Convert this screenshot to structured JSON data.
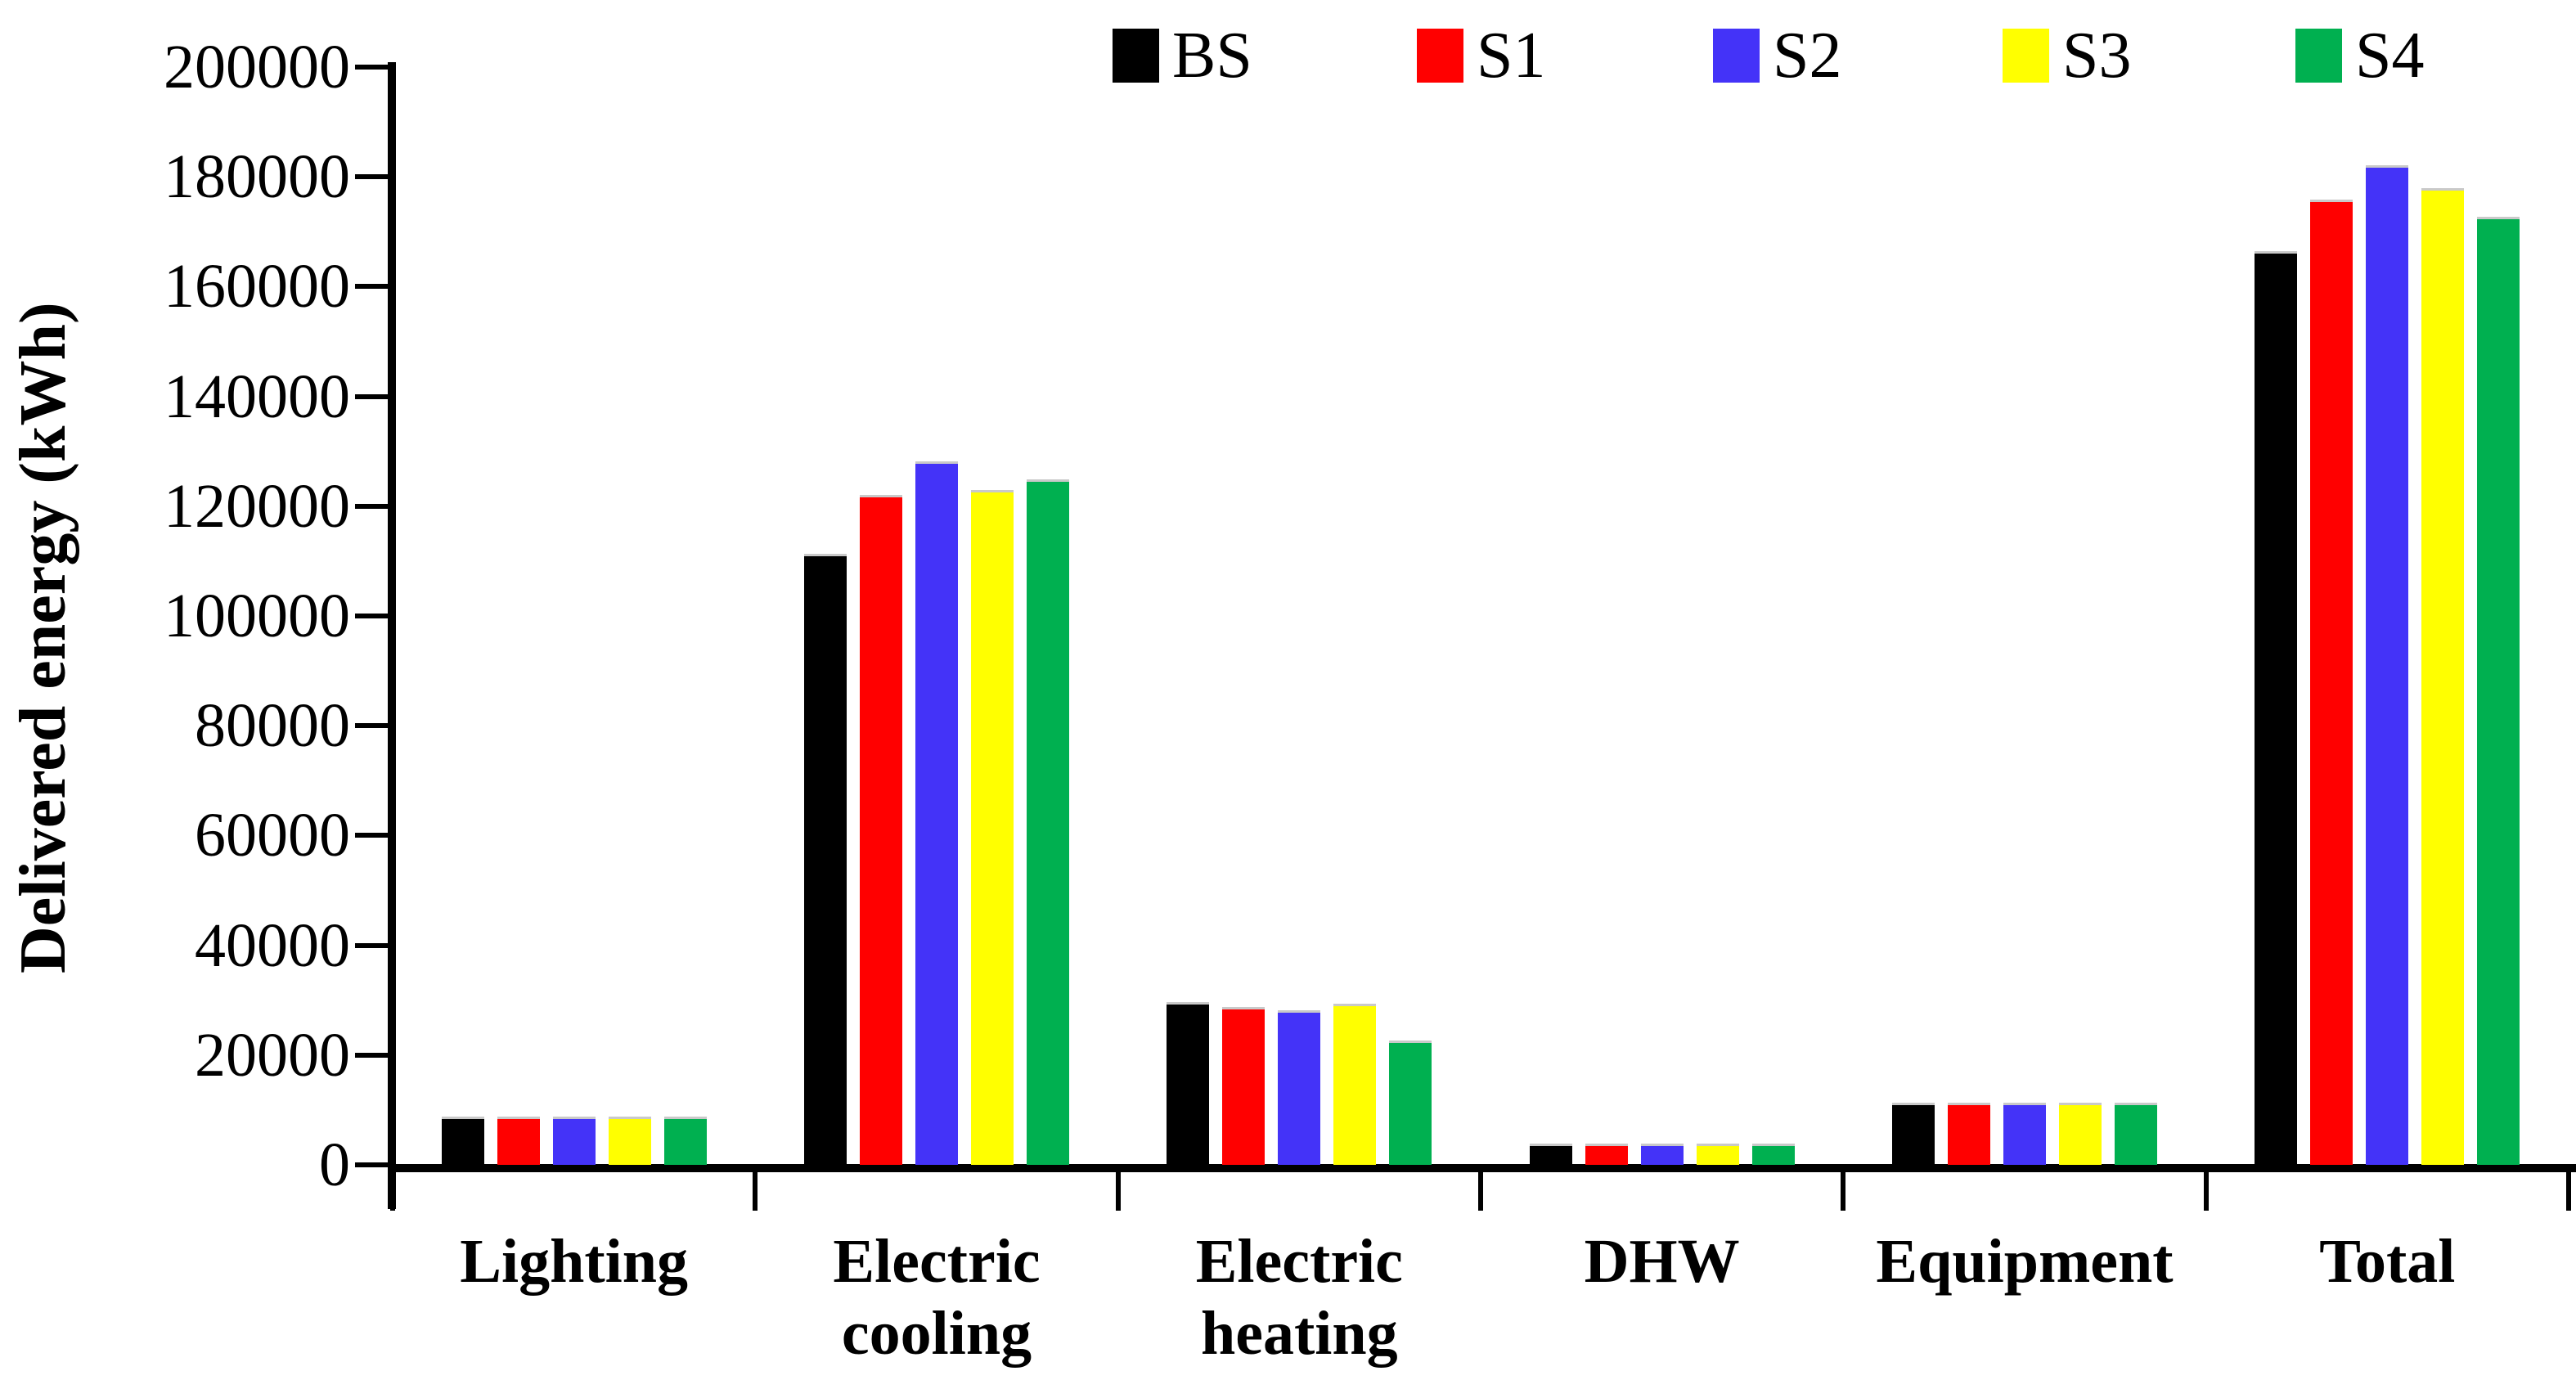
{
  "chart_data": {
    "type": "bar",
    "title": "",
    "xlabel": "",
    "ylabel": "Delivered energy (kWh)",
    "categories": [
      "Lighting",
      "Electric cooling",
      "Electric heating",
      "DHW",
      "Equipment",
      "Total"
    ],
    "category_lines": [
      [
        "Lighting"
      ],
      [
        "Electric",
        "cooling"
      ],
      [
        "Electric",
        "heating"
      ],
      [
        "DHW"
      ],
      [
        "Equipment"
      ],
      [
        "Total"
      ]
    ],
    "series": [
      {
        "name": "BS",
        "color": "#000000",
        "values": [
          8800,
          111300,
          29700,
          3900,
          11300,
          166400
        ]
      },
      {
        "name": "S1",
        "color": "#FF0000",
        "values": [
          8800,
          122100,
          28700,
          3900,
          11300,
          175900
        ]
      },
      {
        "name": "S2",
        "color": "#4433F8",
        "values": [
          8800,
          128100,
          28100,
          3900,
          11300,
          182100
        ]
      },
      {
        "name": "S3",
        "color": "#FFFF00",
        "values": [
          8800,
          122900,
          29300,
          3900,
          11300,
          177900
        ]
      },
      {
        "name": "S4",
        "color": "#00B050",
        "values": [
          8800,
          124900,
          22600,
          3900,
          11300,
          172800
        ]
      }
    ],
    "ylim": [
      0,
      200000
    ],
    "ytick_step": 20000,
    "ytick_labels": [
      "0",
      "20000",
      "40000",
      "60000",
      "80000",
      "100000",
      "120000",
      "140000",
      "160000",
      "180000",
      "200000"
    ],
    "legend_position": "top",
    "grid": false
  }
}
